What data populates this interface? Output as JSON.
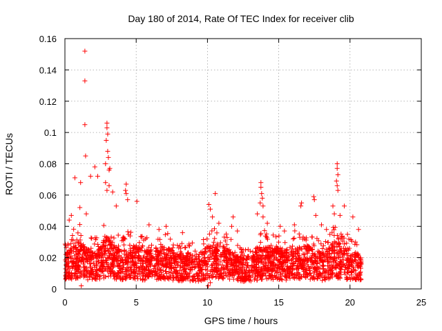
{
  "chart_data": {
    "type": "scatter",
    "title": "Day 180 of 2014, Rate Of TEC Index for receiver clib",
    "xlabel": "GPS time / hours",
    "ylabel": "ROTI / TECUs",
    "xlim": [
      0,
      25
    ],
    "ylim": [
      0,
      0.16
    ],
    "x_ticks": [
      0,
      5,
      10,
      15,
      20,
      25
    ],
    "x_tick_labels": [
      "0",
      "5",
      "10",
      "15",
      "20",
      "25"
    ],
    "y_ticks": [
      0,
      0.02,
      0.04,
      0.06,
      0.08,
      0.1,
      0.12,
      0.14,
      0.16
    ],
    "y_tick_labels": [
      "0",
      "0.02",
      "0.04",
      "0.06",
      "0.08",
      "0.1",
      "0.12",
      "0.14",
      "0.16"
    ],
    "grid": true,
    "marker": "+",
    "color": "#ff0000",
    "series": [
      {
        "name": "ROTI",
        "x_range": [
          0,
          20.8
        ],
        "baseline": [
          [
            0,
            0.014
          ],
          [
            0.5,
            0.018
          ],
          [
            1.0,
            0.02
          ],
          [
            1.5,
            0.017
          ],
          [
            2.0,
            0.015
          ],
          [
            2.5,
            0.018
          ],
          [
            3.0,
            0.022
          ],
          [
            3.5,
            0.018
          ],
          [
            4.0,
            0.016
          ],
          [
            4.5,
            0.018
          ],
          [
            5.0,
            0.018
          ],
          [
            5.5,
            0.016
          ],
          [
            6.0,
            0.016
          ],
          [
            6.5,
            0.017
          ],
          [
            7.0,
            0.018
          ],
          [
            7.5,
            0.016
          ],
          [
            8.0,
            0.014
          ],
          [
            8.5,
            0.015
          ],
          [
            9.0,
            0.014
          ],
          [
            9.5,
            0.014
          ],
          [
            10.0,
            0.018
          ],
          [
            10.5,
            0.02
          ],
          [
            11.0,
            0.018
          ],
          [
            11.5,
            0.016
          ],
          [
            12.0,
            0.014
          ],
          [
            12.5,
            0.013
          ],
          [
            13.0,
            0.014
          ],
          [
            13.5,
            0.016
          ],
          [
            14.0,
            0.018
          ],
          [
            14.5,
            0.017
          ],
          [
            15.0,
            0.017
          ],
          [
            15.5,
            0.016
          ],
          [
            16.0,
            0.018
          ],
          [
            16.5,
            0.017
          ],
          [
            17.0,
            0.018
          ],
          [
            17.5,
            0.016
          ],
          [
            18.0,
            0.015
          ],
          [
            18.5,
            0.018
          ],
          [
            19.0,
            0.02
          ],
          [
            19.5,
            0.018
          ],
          [
            20.0,
            0.016
          ],
          [
            20.8,
            0.014
          ]
        ],
        "highlights": [
          [
            1.4,
            0.152
          ],
          [
            1.4,
            0.133
          ],
          [
            1.4,
            0.105
          ],
          [
            1.45,
            0.085
          ],
          [
            1.1,
            0.068
          ],
          [
            1.8,
            0.072
          ],
          [
            0.7,
            0.071
          ],
          [
            2.1,
            0.078
          ],
          [
            2.3,
            0.072
          ],
          [
            2.95,
            0.106
          ],
          [
            2.95,
            0.103
          ],
          [
            3.0,
            0.099
          ],
          [
            2.9,
            0.095
          ],
          [
            3.0,
            0.088
          ],
          [
            3.05,
            0.084
          ],
          [
            2.85,
            0.08
          ],
          [
            3.15,
            0.077
          ],
          [
            3.1,
            0.076
          ],
          [
            2.85,
            0.068
          ],
          [
            3.1,
            0.066
          ],
          [
            2.95,
            0.063
          ],
          [
            3.35,
            0.062
          ],
          [
            4.3,
            0.067
          ],
          [
            4.25,
            0.063
          ],
          [
            4.3,
            0.061
          ],
          [
            4.4,
            0.057
          ],
          [
            5.05,
            0.056
          ],
          [
            3.6,
            0.053
          ],
          [
            0.45,
            0.047
          ],
          [
            0.3,
            0.044
          ],
          [
            1.05,
            0.052
          ],
          [
            1.5,
            0.048
          ],
          [
            5.9,
            0.041
          ],
          [
            6.6,
            0.038
          ],
          [
            7.1,
            0.04
          ],
          [
            8.25,
            0.036
          ],
          [
            10.1,
            0.054
          ],
          [
            10.2,
            0.051
          ],
          [
            10.55,
            0.061
          ],
          [
            10.35,
            0.046
          ],
          [
            10.8,
            0.042
          ],
          [
            11.8,
            0.046
          ],
          [
            11.7,
            0.04
          ],
          [
            12.1,
            0.037
          ],
          [
            13.75,
            0.068
          ],
          [
            13.75,
            0.065
          ],
          [
            13.8,
            0.061
          ],
          [
            13.85,
            0.058
          ],
          [
            13.7,
            0.055
          ],
          [
            13.9,
            0.053
          ],
          [
            13.5,
            0.048
          ],
          [
            13.9,
            0.046
          ],
          [
            14.2,
            0.042
          ],
          [
            15.1,
            0.04
          ],
          [
            15.4,
            0.037
          ],
          [
            16.1,
            0.041
          ],
          [
            16.6,
            0.055
          ],
          [
            16.55,
            0.053
          ],
          [
            17.45,
            0.059
          ],
          [
            17.5,
            0.057
          ],
          [
            17.6,
            0.047
          ],
          [
            18.0,
            0.041
          ],
          [
            18.35,
            0.038
          ],
          [
            18.8,
            0.053
          ],
          [
            18.9,
            0.048
          ],
          [
            19.1,
            0.08
          ],
          [
            19.1,
            0.077
          ],
          [
            19.15,
            0.073
          ],
          [
            19.05,
            0.069
          ],
          [
            19.1,
            0.066
          ],
          [
            19.15,
            0.063
          ],
          [
            19.6,
            0.053
          ],
          [
            19.3,
            0.047
          ],
          [
            20.2,
            0.046
          ],
          [
            20.6,
            0.038
          ],
          [
            5.5,
            0.02
          ],
          [
            10.05,
            0.002
          ],
          [
            10.2,
            0.004
          ],
          [
            1.15,
            0.002
          ]
        ]
      }
    ]
  }
}
